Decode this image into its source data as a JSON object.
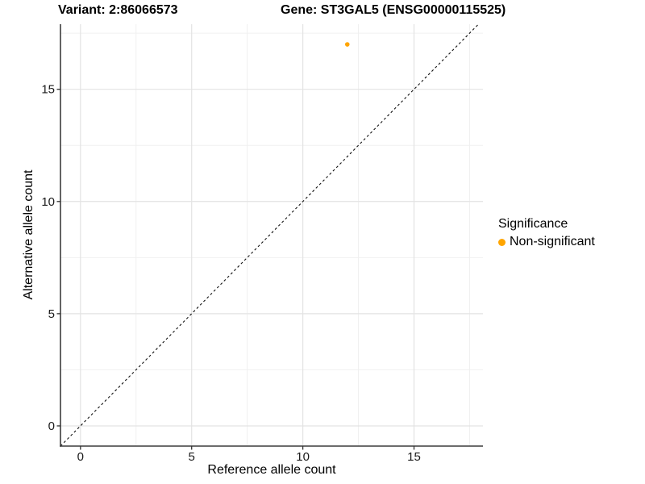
{
  "titles": {
    "variant": "Variant: 2:86066573",
    "gene": "Gene: ST3GAL5 (ENSG00000115525)"
  },
  "chart_data": {
    "type": "scatter",
    "xlabel": "Reference allele count",
    "ylabel": "Alternative allele count",
    "xlim": [
      -0.9,
      18.1
    ],
    "ylim": [
      -0.9,
      17.9
    ],
    "major_ticks": [
      0,
      5,
      10,
      15
    ],
    "minor_ticks": [
      2.5,
      7.5,
      12.5,
      17.5
    ],
    "grid": true,
    "points": [
      {
        "x": 12,
        "y": 17,
        "series": "Non-significant"
      }
    ],
    "identity_line": {
      "slope": 1,
      "intercept": 0,
      "style": "dashed"
    },
    "legend": {
      "position": "right",
      "title": "Significance",
      "items": [
        {
          "label": "Non-significant",
          "color": "#FFA500"
        }
      ]
    }
  },
  "colors": {
    "point": "#FFA500",
    "grid_major": "#E3E3E3",
    "grid_minor": "#F0F0F0",
    "axis_line": "#3C3C3C",
    "tick_mark": "#333333",
    "tick_label": "#1A1A1A",
    "identity_line": "#111111",
    "background": "#FFFFFF"
  }
}
